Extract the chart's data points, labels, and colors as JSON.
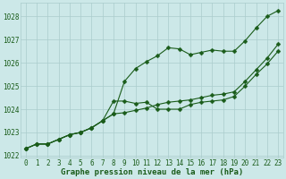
{
  "title": "Graphe pression niveau de la mer (hPa)",
  "bg_color": "#cce8e8",
  "grid_color": "#aacccc",
  "line_color": "#1a5c1a",
  "marker": "D",
  "line_width": 0.8,
  "marker_size": 2.5,
  "tick_fontsize": 5.5,
  "title_fontsize": 6.5,
  "hours": [
    0,
    1,
    2,
    3,
    4,
    5,
    6,
    7,
    8,
    9,
    10,
    11,
    12,
    13,
    14,
    15,
    16,
    17,
    18,
    19,
    20,
    21,
    22,
    23
  ],
  "series1": [
    1022.3,
    1022.5,
    1022.5,
    1022.7,
    1022.9,
    1023.0,
    1023.2,
    1023.5,
    1023.8,
    1025.2,
    1025.75,
    1026.05,
    1026.3,
    1026.65,
    1026.6,
    1026.35,
    1026.45,
    1026.55,
    1026.5,
    1026.5,
    1026.95,
    1027.5,
    1028.0,
    1028.25
  ],
  "series2": [
    1022.3,
    1022.5,
    1022.5,
    1022.7,
    1022.9,
    1023.0,
    1023.2,
    1023.5,
    1024.35,
    1024.35,
    1024.25,
    1024.3,
    1024.0,
    1024.0,
    1024.0,
    1024.2,
    1024.3,
    1024.35,
    1024.4,
    1024.55,
    1025.0,
    1025.5,
    1025.95,
    1026.5
  ],
  "series3": [
    1022.3,
    1022.5,
    1022.5,
    1022.7,
    1022.9,
    1023.0,
    1023.2,
    1023.5,
    1023.8,
    1023.85,
    1023.95,
    1024.05,
    1024.2,
    1024.3,
    1024.35,
    1024.4,
    1024.5,
    1024.6,
    1024.65,
    1024.75,
    1025.2,
    1025.7,
    1026.2,
    1026.8
  ],
  "ylim_min": 1021.9,
  "ylim_max": 1028.6,
  "yticks": [
    1022,
    1023,
    1024,
    1025,
    1026,
    1027,
    1028
  ]
}
